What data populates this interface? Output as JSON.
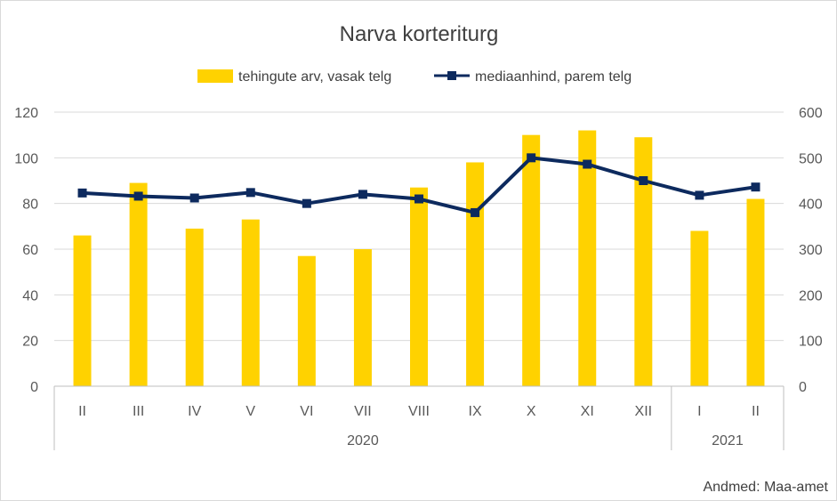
{
  "chart_data": {
    "type": "bar",
    "title": "Narva korteriturg",
    "categories": [
      "II",
      "III",
      "IV",
      "V",
      "VI",
      "VII",
      "VIII",
      "IX",
      "X",
      "XI",
      "XII",
      "I",
      "II"
    ],
    "groups": [
      {
        "label": "2020",
        "count": 11
      },
      {
        "label": "2021",
        "count": 2
      }
    ],
    "series": [
      {
        "name": "tehingute arv, vasak telg",
        "type": "bar",
        "axis": "left",
        "color": "#FFD200",
        "values": [
          66,
          89,
          69,
          73,
          57,
          60,
          87,
          98,
          110,
          112,
          109,
          68,
          82
        ]
      },
      {
        "name": "mediaanhind, parem telg",
        "type": "line",
        "axis": "right",
        "color": "#0D2A5E",
        "values": [
          423,
          416,
          412,
          424,
          400,
          420,
          410,
          380,
          500,
          486,
          450,
          418,
          436
        ]
      }
    ],
    "y_left": {
      "min": 0,
      "max": 120,
      "ticks": [
        "0",
        "20",
        "40",
        "60",
        "80",
        "100",
        "120"
      ]
    },
    "y_right": {
      "min": 0,
      "max": 600,
      "ticks": [
        "0",
        "100",
        "200",
        "300",
        "400",
        "500",
        "600"
      ]
    },
    "grid": true,
    "legend_position": "top"
  },
  "source": "Andmed: Maa-amet"
}
